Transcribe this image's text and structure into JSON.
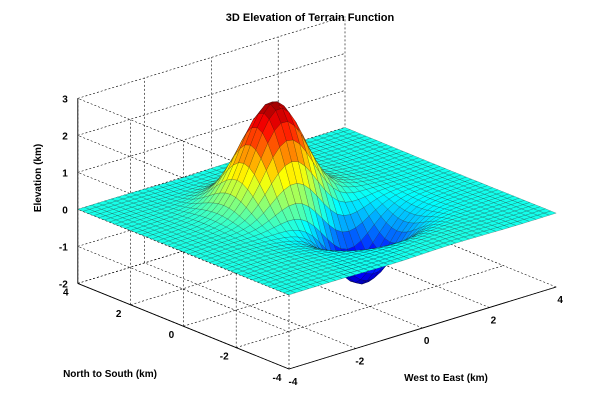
{
  "chart_data": {
    "type": "surface3d",
    "title": "3D Elevation of Terrain Function",
    "xlabel": "West to East (km)",
    "ylabel": "North to South (km)",
    "zlabel": "Elevation (km)",
    "x_ticks": [
      "-4",
      "-2",
      "0",
      "2",
      "4"
    ],
    "y_ticks": [
      "-4",
      "-2",
      "0",
      "2",
      "4"
    ],
    "z_ticks": [
      "-2",
      "-1",
      "0",
      "1",
      "2",
      "3"
    ],
    "xlim": [
      -4,
      4
    ],
    "ylim": [
      -4,
      4
    ],
    "zlim": [
      -2,
      3
    ],
    "grid": true,
    "colormap": "jet",
    "surface": {
      "peak": {
        "x": -0.5,
        "y": 1.0,
        "z": 2.9
      },
      "trough": {
        "x": 0.5,
        "y": -1.0,
        "z": -1.9
      },
      "base_elevation": 0
    }
  }
}
